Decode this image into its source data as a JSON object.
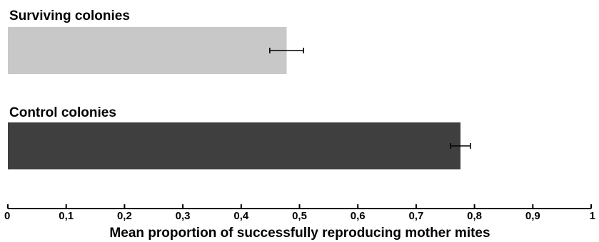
{
  "chart_data": {
    "type": "bar",
    "orientation": "horizontal",
    "categories": [
      "Surviving colonies",
      "Control colonies"
    ],
    "values": [
      0.478,
      0.776
    ],
    "errors": [
      0.029,
      0.017
    ],
    "colors": [
      "#c8c8c8",
      "#3f3f3f"
    ],
    "xlabel": "Mean proportion of successfully reproducing mother mites",
    "xlim": [
      0,
      1
    ],
    "xticks": [
      0,
      0.1,
      0.2,
      0.3,
      0.4,
      0.5,
      0.6,
      0.7,
      0.8,
      0.9,
      1
    ],
    "xtick_labels": [
      "0",
      "0,1",
      "0,2",
      "0,3",
      "0,4",
      "0,5",
      "0,6",
      "0,7",
      "0,8",
      "0,9",
      "1"
    ],
    "grid": false,
    "error_bars": true
  }
}
